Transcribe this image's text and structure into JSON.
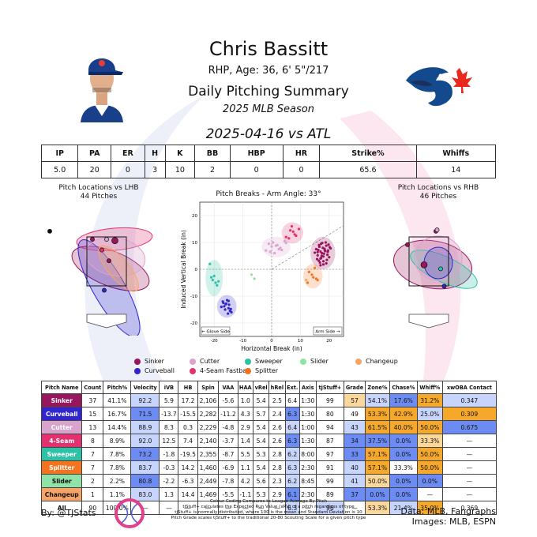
{
  "header": {
    "name": "Chris Bassitt",
    "bio": "RHP, Age: 36, 6' 5\"/217",
    "title": "Daily Pitching Summary",
    "season": "2025 MLB Season",
    "game": "2025-04-16 vs ATL"
  },
  "box_score": {
    "headers": [
      "IP",
      "PA",
      "ER",
      "H",
      "K",
      "BB",
      "HBP",
      "HR",
      "Strike%",
      "Whiffs"
    ],
    "values": [
      "5.0",
      "20",
      "0",
      "3",
      "10",
      "2",
      "0",
      "0",
      "65.6",
      "14"
    ]
  },
  "panels": {
    "lhb_title": "Pitch Locations vs LHB",
    "lhb_count": "44 Pitches",
    "rhb_title": "Pitch Locations vs RHB",
    "rhb_count": "46 Pitches",
    "breaks_title": "Pitch Breaks - Arm Angle: 33°",
    "glove_side": "← Glove Side",
    "arm_side": "Arm Side →"
  },
  "colors": {
    "Sinker": "#98165D",
    "Curveball": "#3025CE",
    "Cutter": "#D8A4CE",
    "4-Seam Fastball": "#E3306F",
    "Sweeper": "#2DC1A6",
    "Slider": "#8FE3A7",
    "Changeup": "#F7A469",
    "Splitter": "#F5721E",
    "cell_blue": "#6D8CF3",
    "cell_lightblue": "#C7D4FB",
    "cell_orange": "#F6A82A",
    "cell_lightorange": "#FAD79A",
    "cell_white": "#FFFFFF"
  },
  "legend": [
    {
      "name": "Sinker",
      "color_key": "Sinker"
    },
    {
      "name": "Cutter",
      "color_key": "Cutter"
    },
    {
      "name": "Sweeper",
      "color_key": "Sweeper"
    },
    {
      "name": "Slider",
      "color_key": "Slider"
    },
    {
      "name": "Changeup",
      "color_key": "Changeup"
    },
    {
      "name": "Curveball",
      "color_key": "Curveball"
    },
    {
      "name": "4-Seam Fastball",
      "color_key": "4-Seam Fastball"
    },
    {
      "name": "Splitter",
      "color_key": "Splitter"
    }
  ],
  "chart_data": [
    {
      "type": "scatter",
      "title": "Pitch Breaks - Arm Angle: 33°",
      "xlabel": "Horizontal Break (in)",
      "ylabel": "Induced Vertical Break (in)",
      "xlim": [
        -25,
        25
      ],
      "ylim": [
        -25,
        25
      ],
      "xticks": [
        -20,
        -10,
        0,
        10,
        20
      ],
      "yticks": [
        -20,
        -10,
        0,
        10,
        20
      ],
      "grid": true,
      "series": [
        {
          "name": "Sinker",
          "x": [
            17.2,
            18.5,
            16.0,
            19.0,
            17.5,
            20.0,
            15.5,
            18.0,
            16.5,
            19.5,
            17.0,
            18.8,
            16.8,
            20.5,
            15.0,
            17.8,
            19.2,
            18.2,
            16.2,
            17.0,
            19.8,
            18.0,
            16.6,
            17.4,
            18.6,
            15.8,
            19.0,
            17.6,
            16.0,
            18.4,
            17.2,
            19.4,
            20.2,
            16.4,
            18.0,
            17.0,
            19.6
          ],
          "y": [
            9.5,
            7.0,
            5.2,
            8.8,
            6.0,
            4.5,
            7.5,
            3.0,
            9.0,
            6.5,
            4.0,
            10.0,
            2.5,
            7.8,
            6.2,
            8.0,
            3.5,
            5.8,
            7.2,
            1.5,
            9.2,
            4.8,
            8.4,
            5.0,
            6.8,
            3.8,
            2.2,
            9.8,
            6.4,
            7.6,
            4.2,
            5.4,
            8.2,
            3.2,
            1.8,
            6.6,
            7.0
          ]
        },
        {
          "name": "Curveball",
          "x": [
            -16.0,
            -15.0,
            -17.0,
            -14.5,
            -16.5,
            -15.5,
            -14.0,
            -17.5,
            -15.8,
            -16.2,
            -14.8,
            -15.2,
            -16.8,
            -15.0,
            -14.2
          ],
          "y": [
            -13.0,
            -14.5,
            -12.0,
            -15.5,
            -13.8,
            -11.5,
            -16.0,
            -14.0,
            -12.8,
            -15.0,
            -13.2,
            -16.5,
            -12.5,
            -11.8,
            -14.8
          ]
        },
        {
          "name": "Cutter",
          "x": [
            -2.0,
            0.0,
            2.0,
            4.5,
            1.0,
            -1.0,
            3.0,
            5.0,
            0.5,
            2.5,
            -0.5,
            1.5,
            3.5
          ],
          "y": [
            7.0,
            8.5,
            9.0,
            10.5,
            6.0,
            9.5,
            8.0,
            9.8,
            10.0,
            7.5,
            6.5,
            8.8,
            7.2
          ]
        },
        {
          "name": "4-Seam Fastball",
          "x": [
            5.0,
            6.5,
            8.0,
            7.0,
            9.5,
            6.0,
            8.5,
            7.5
          ],
          "y": [
            12.0,
            14.5,
            13.0,
            16.0,
            15.0,
            11.5,
            12.5,
            14.0
          ]
        },
        {
          "name": "Sweeper",
          "x": [
            -21.0,
            -19.5,
            -20.5,
            -19.0,
            -20.0,
            -18.5,
            -21.5
          ],
          "y": [
            -3.0,
            -5.0,
            -4.0,
            -6.0,
            -2.5,
            -4.5,
            2.0
          ]
        },
        {
          "name": "Splitter",
          "x": [
            14.0,
            15.5,
            13.0,
            16.0,
            14.5,
            12.5,
            15.0
          ],
          "y": [
            -2.0,
            -3.5,
            -1.0,
            -4.0,
            -3.0,
            -5.0,
            0.5
          ]
        },
        {
          "name": "Slider",
          "x": [
            -7.0,
            -6.0
          ],
          "y": [
            -2.0,
            -3.5
          ]
        },
        {
          "name": "Changeup",
          "x": [
            12.0
          ],
          "y": [
            -4.0
          ]
        }
      ]
    },
    {
      "type": "scatter",
      "title": "Pitch Locations vs LHB",
      "series": [
        {
          "name": "Sinker",
          "x": [
            0.35,
            0.1,
            -0.6
          ],
          "y": [
            2.95,
            2.2,
            3.0
          ]
        },
        {
          "name": "Cutter",
          "x": [
            0.0
          ],
          "y": [
            3.0
          ]
        },
        {
          "name": "4-Seam Fastball",
          "x": [
            -0.2
          ],
          "y": [
            2.6
          ]
        },
        {
          "name": "Curveball",
          "x": [
            -0.1
          ],
          "y": [
            1.1
          ]
        },
        {
          "name": "Other",
          "x": [
            -2.4
          ],
          "y": [
            3.3
          ]
        }
      ]
    },
    {
      "type": "scatter",
      "title": "Pitch Locations vs RHB",
      "series": [
        {
          "name": "Sinker",
          "x": [
            -0.2,
            0.3,
            -0.9
          ],
          "y": [
            2.05,
            3.3,
            2.8
          ]
        },
        {
          "name": "Sweeper",
          "x": [
            0.5
          ],
          "y": [
            1.9
          ]
        },
        {
          "name": "Curveball",
          "x": [
            0.65
          ],
          "y": [
            1.25
          ]
        },
        {
          "name": "Cutter",
          "x": [
            0.35
          ],
          "y": [
            3.35
          ]
        }
      ]
    }
  ],
  "pitch_table": {
    "headers": [
      "Pitch Name",
      "Count",
      "Pitch%",
      "Velocity",
      "iVB",
      "HB",
      "Spin",
      "VAA",
      "HAA",
      "vRel",
      "hRel",
      "Ext.",
      "Axis",
      "tjStuff+",
      "Grade",
      "Zone%",
      "Chase%",
      "Whiff%",
      "xwOBA Contact"
    ],
    "rows": [
      {
        "name": "Sinker",
        "bg": "#98165D",
        "cells": [
          "37",
          "41.1%",
          "92.2",
          "5.9",
          "17.2",
          "2,106",
          "-5.6",
          "1.0",
          "5.4",
          "2.5",
          "6.4",
          "1:30",
          "99",
          "57",
          "54.1%",
          "17.6%",
          "31.2%",
          "0.347"
        ],
        "shade": [
          "w",
          "w",
          "lb",
          "w",
          "w",
          "w",
          "w",
          "w",
          "w",
          "w",
          "w",
          "w",
          "w",
          "lo",
          "lb",
          "b",
          "o",
          "lb"
        ]
      },
      {
        "name": "Curveball",
        "bg": "#3025CE",
        "cells": [
          "15",
          "16.7%",
          "71.5",
          "-13.7",
          "-15.5",
          "2,282",
          "-11.2",
          "4.3",
          "5.7",
          "2.4",
          "6.3",
          "1:30",
          "80",
          "49",
          "53.3%",
          "42.9%",
          "25.0%",
          "0.309"
        ],
        "shade": [
          "w",
          "w",
          "b",
          "w",
          "w",
          "w",
          "w",
          "w",
          "w",
          "w",
          "b",
          "w",
          "w",
          "w",
          "o",
          "o",
          "lb",
          "o"
        ]
      },
      {
        "name": "Cutter",
        "bg": "#D8A4CE",
        "cells": [
          "13",
          "14.4%",
          "88.9",
          "8.3",
          "0.3",
          "2,229",
          "-4.8",
          "2.9",
          "5.4",
          "2.6",
          "6.4",
          "1:00",
          "94",
          "43",
          "61.5%",
          "40.0%",
          "50.0%",
          "0.675"
        ],
        "shade": [
          "w",
          "w",
          "lb",
          "w",
          "w",
          "w",
          "w",
          "w",
          "w",
          "w",
          "lb",
          "w",
          "w",
          "lb",
          "o",
          "o",
          "o",
          "b"
        ]
      },
      {
        "name": "4-Seam",
        "bg": "#E3306F",
        "cells": [
          "8",
          "8.9%",
          "92.0",
          "12.5",
          "7.4",
          "2,140",
          "-3.7",
          "1.4",
          "5.4",
          "2.6",
          "6.3",
          "1:30",
          "87",
          "34",
          "37.5%",
          "0.0%",
          "33.3%",
          "—"
        ],
        "shade": [
          "w",
          "w",
          "lb",
          "w",
          "w",
          "w",
          "w",
          "w",
          "w",
          "w",
          "b",
          "w",
          "w",
          "b",
          "b",
          "b",
          "lo",
          "w"
        ]
      },
      {
        "name": "Sweeper",
        "bg": "#2DC1A6",
        "cells": [
          "7",
          "7.8%",
          "73.2",
          "-1.8",
          "-19.5",
          "2,355",
          "-8.7",
          "5.5",
          "5.3",
          "2.8",
          "6.2",
          "8:00",
          "97",
          "33",
          "57.1%",
          "0.0%",
          "50.0%",
          "—"
        ],
        "shade": [
          "w",
          "w",
          "b",
          "w",
          "w",
          "w",
          "w",
          "w",
          "w",
          "w",
          "lb",
          "w",
          "w",
          "b",
          "o",
          "b",
          "o",
          "w"
        ]
      },
      {
        "name": "Splitter",
        "bg": "#F5721E",
        "cells": [
          "7",
          "7.8%",
          "83.7",
          "-0.3",
          "14.2",
          "1,460",
          "-6.9",
          "1.1",
          "5.4",
          "2.8",
          "6.3",
          "2:30",
          "91",
          "40",
          "57.1%",
          "33.3%",
          "50.0%",
          "—"
        ],
        "shade": [
          "w",
          "w",
          "lb",
          "w",
          "w",
          "w",
          "w",
          "w",
          "w",
          "w",
          "lb",
          "w",
          "w",
          "lb",
          "o",
          "w",
          "o",
          "w"
        ]
      },
      {
        "name": "Slider",
        "bg": "#8FE3A7",
        "cells": [
          "2",
          "2.2%",
          "80.8",
          "-2.2",
          "-6.3",
          "2,449",
          "-7.8",
          "4.2",
          "5.6",
          "2.3",
          "6.2",
          "8:45",
          "99",
          "41",
          "50.0%",
          "0.0%",
          "0.0%",
          "—"
        ],
        "shade": [
          "w",
          "w",
          "b",
          "w",
          "w",
          "w",
          "w",
          "w",
          "w",
          "w",
          "lb",
          "w",
          "w",
          "lb",
          "lo",
          "b",
          "b",
          "w"
        ]
      },
      {
        "name": "Changeup",
        "bg": "#F7A469",
        "cells": [
          "1",
          "1.1%",
          "83.0",
          "1.3",
          "14.4",
          "1,469",
          "-5.5",
          "-1.1",
          "5.3",
          "2.9",
          "6.1",
          "2:30",
          "89",
          "37",
          "0.0%",
          "0.0%",
          "—",
          "—"
        ],
        "shade": [
          "w",
          "w",
          "lb",
          "w",
          "w",
          "w",
          "w",
          "w",
          "w",
          "w",
          "b",
          "w",
          "w",
          "b",
          "b",
          "b",
          "w",
          "w"
        ]
      },
      {
        "name": "All",
        "bg": "#FFFFFF",
        "cells": [
          "90",
          "100.0%",
          "—",
          "—",
          "—",
          "—",
          "—",
          "—",
          "—",
          "—",
          "6.3",
          "—",
          "96",
          "—",
          "53.3%",
          "21.4%",
          "35.0%",
          "0.369"
        ],
        "shade": [
          "w",
          "w",
          "w",
          "w",
          "w",
          "w",
          "w",
          "w",
          "w",
          "w",
          "lb",
          "w",
          "lb",
          "w",
          "lo",
          "lb",
          "o",
          "w"
        ]
      }
    ]
  },
  "footer": {
    "by": "By: @TJStats",
    "note1": "Colour Coding Compares to League Average By Pitch",
    "note2": "tjStuff+ calculates the Expected Run Value (xRV) of a pitch regardless of type",
    "note3": "tjStuff+ is normally distributed, where 100 is the mean and Standard Deviation is 10",
    "note4": "Pitch Grade scales tjStuff+ to the traditional 20-80 Scouting Scale for a given pitch type",
    "data": "Data: MLB, Fangraphs",
    "images": "Images: MLB, ESPN"
  }
}
